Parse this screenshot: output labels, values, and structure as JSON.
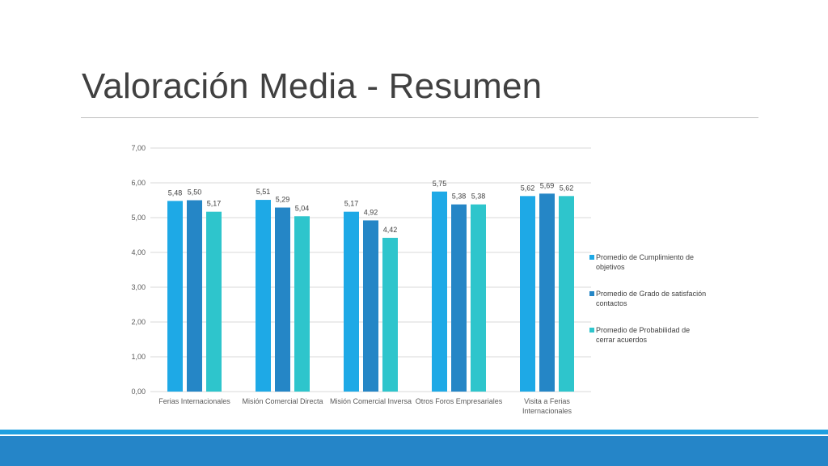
{
  "slide": {
    "title": "Valoración Media - Resumen"
  },
  "colors": {
    "series_1": "#1ea9e6",
    "series_2": "#2586c6",
    "series_3": "#2ec5cc",
    "gridline": "#d9d9d9",
    "axis_text": "#595959",
    "bottom_bar_thin": "#1f9fe0",
    "bottom_bar_thick": "#2585c8"
  },
  "chart_data": {
    "type": "bar",
    "categories": [
      [
        "Ferias Internacionales"
      ],
      [
        "Misión Comercial Directa"
      ],
      [
        "Misión Comercial Inversa"
      ],
      [
        "Otros Foros Empresariales"
      ],
      [
        "Visita a Ferias",
        "Internacionales"
      ]
    ],
    "series": [
      {
        "name": [
          "Promedio de Cumplimiento de",
          "objetivos"
        ],
        "values": [
          5.48,
          5.51,
          5.17,
          5.75,
          5.62
        ],
        "labels": [
          "5,48",
          "5,51",
          "5,17",
          "5,75",
          "5,62"
        ]
      },
      {
        "name": [
          "Promedio de Grado de satisfación",
          "contactos"
        ],
        "values": [
          5.5,
          5.29,
          4.92,
          5.38,
          5.69
        ],
        "labels": [
          "5,50",
          "5,29",
          "4,92",
          "5,38",
          "5,69"
        ]
      },
      {
        "name": [
          "Promedio de Probabilidad de",
          "cerrar acuerdos"
        ],
        "values": [
          5.17,
          5.04,
          4.42,
          5.38,
          5.62
        ],
        "labels": [
          "5,17",
          "5,04",
          "4,42",
          "5,38",
          "5,62"
        ]
      }
    ],
    "ylim": [
      0,
      7
    ],
    "yticks": [
      "0,00",
      "1,00",
      "2,00",
      "3,00",
      "4,00",
      "5,00",
      "6,00",
      "7,00"
    ],
    "grid": true,
    "legend_position": "right"
  }
}
